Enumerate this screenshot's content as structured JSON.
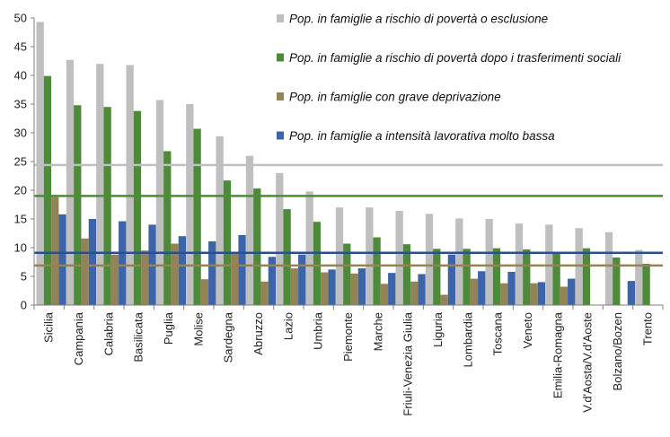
{
  "chart_data": {
    "type": "bar",
    "ylim": [
      0,
      50
    ],
    "yticks": [
      0,
      5,
      10,
      15,
      20,
      25,
      30,
      35,
      40,
      45,
      50
    ],
    "categories": [
      "Sicilia",
      "Campania",
      "Calabria",
      "Basilicata",
      "Puglia",
      "Molise",
      "Sardegna",
      "Abruzzo",
      "Lazio",
      "Umbria",
      "Piemonte",
      "Marche",
      "Friuli-Venezia Giulia",
      "Liguria",
      "Lombardia",
      "Toscana",
      "Veneto",
      "Emilia-Romagna",
      "V.d'Aosta/V.d'Aoste",
      "Bolzano/Bozen",
      "Trento"
    ],
    "series": [
      {
        "name": "Pop. in famiglie a rischio di povertà o esclusione",
        "color": "#bfbfbf",
        "values": [
          49.3,
          42.7,
          42.0,
          41.8,
          35.7,
          35.0,
          29.4,
          26.0,
          23.0,
          19.8,
          17.0,
          17.0,
          16.4,
          15.9,
          15.1,
          15.0,
          14.2,
          14.0,
          13.4,
          12.7,
          9.6
        ]
      },
      {
        "name": "Pop. in famiglie a rischio di povertà dopo i trasferimenti sociali",
        "color": "#4f8a3a",
        "values": [
          39.9,
          34.8,
          34.5,
          33.8,
          26.8,
          30.7,
          21.7,
          20.3,
          16.7,
          14.5,
          10.7,
          11.8,
          10.6,
          9.8,
          9.8,
          9.9,
          9.7,
          9.0,
          9.9,
          8.3,
          7.2
        ]
      },
      {
        "name": "Pop. in famiglie con grave deprivazione",
        "color": "#948356",
        "values": [
          18.8,
          11.6,
          8.8,
          9.5,
          10.7,
          4.5,
          9.1,
          4.1,
          6.4,
          5.7,
          5.5,
          3.7,
          4.1,
          1.8,
          4.6,
          3.8,
          3.8,
          3.2,
          null,
          null,
          null
        ]
      },
      {
        "name": "Pop. in famiglie a intensità lavorativa molto bassa",
        "color": "#3c64a8",
        "values": [
          15.8,
          15.0,
          14.6,
          14.0,
          12.0,
          11.1,
          12.2,
          8.4,
          8.8,
          6.2,
          6.4,
          5.6,
          5.4,
          8.8,
          5.9,
          5.8,
          4.0,
          4.6,
          null,
          4.2,
          null
        ]
      }
    ],
    "reference_lines": [
      {
        "series": 0,
        "value": 24.4,
        "color": "#bfbfbf"
      },
      {
        "series": 1,
        "value": 19.0,
        "color": "#4f8a3a"
      },
      {
        "series": 2,
        "value": 6.9,
        "color": "#948356"
      },
      {
        "series": 3,
        "value": 9.1,
        "color": "#2b4f8c"
      }
    ],
    "legend_position": "top-right",
    "grid": false
  }
}
